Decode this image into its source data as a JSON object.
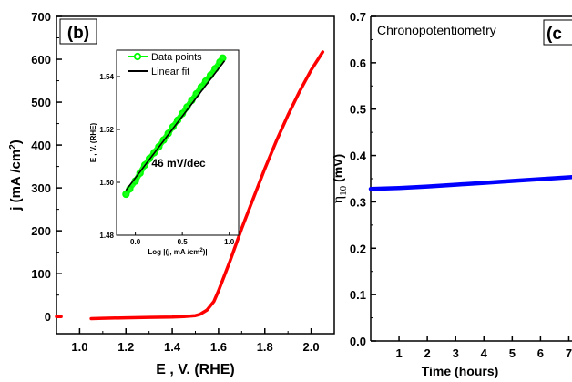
{
  "chart_data": [
    {
      "type": "line",
      "panel_label": "b",
      "xlabel": "E , V. (RHE)",
      "ylabel_main": "j (mA /cm",
      "ylabel_sup": "2",
      "ylabel_end": ")",
      "xlim": [
        0.9,
        2.1
      ],
      "ylim": [
        -40,
        700
      ],
      "xticks": [
        1.0,
        1.2,
        1.4,
        1.6,
        1.8,
        2.0
      ],
      "xtick_labels": [
        "1.0",
        "1.2",
        "1.4",
        "1.6",
        "1.8",
        "2.0"
      ],
      "yticks": [
        0,
        100,
        200,
        300,
        400,
        500,
        600,
        700
      ],
      "ytick_labels": [
        "0",
        "100",
        "200",
        "300",
        "400",
        "500",
        "600",
        "700"
      ],
      "series_color": "#ff0000",
      "series": [
        {
          "x": [
            1.05,
            1.1,
            1.2,
            1.3,
            1.4,
            1.45,
            1.5,
            1.52,
            1.55,
            1.58,
            1.6,
            1.65,
            1.7,
            1.75,
            1.8,
            1.85,
            1.9,
            1.95,
            2.0,
            2.03,
            2.05
          ],
          "y": [
            -5,
            -4,
            -3,
            -2,
            -1,
            0,
            2,
            5,
            15,
            35,
            60,
            130,
            205,
            275,
            345,
            410,
            470,
            525,
            575,
            600,
            617
          ]
        },
        {
          "x": [
            0.9,
            0.92
          ],
          "y": [
            0,
            0
          ]
        }
      ],
      "inset": {
        "xlabel_main": "Log |(j, mA /cm",
        "xlabel_sup": "2",
        "xlabel_end": ")|",
        "ylabel": "E , V. (RHE)",
        "xlim": [
          -0.2,
          1.1
        ],
        "ylim": [
          1.48,
          1.55
        ],
        "xticks": [
          0.0,
          0.5,
          1.0
        ],
        "xtick_labels": [
          "0.0",
          "0.5",
          "1.0"
        ],
        "yticks": [
          1.48,
          1.5,
          1.52,
          1.54
        ],
        "ytick_labels": [
          "1.48",
          "1.50",
          "1.52",
          "1.54"
        ],
        "legend": [
          {
            "label": "Data points",
            "color": "#00ff00"
          },
          {
            "label": "Linear fit",
            "color": "#000000"
          }
        ],
        "annotation": "46 mV/dec",
        "fit": {
          "x": [
            -0.1,
            0.95
          ],
          "y": [
            1.497,
            1.546
          ]
        },
        "points": {
          "x": [
            -0.1,
            -0.06,
            0.0,
            0.05,
            0.1,
            0.15,
            0.2,
            0.25,
            0.3,
            0.35,
            0.4,
            0.45,
            0.5,
            0.55,
            0.6,
            0.65,
            0.7,
            0.75,
            0.8,
            0.85,
            0.9,
            0.93
          ],
          "y": [
            1.4955,
            1.4975,
            1.5005,
            1.5035,
            1.5065,
            1.509,
            1.5112,
            1.5135,
            1.516,
            1.5185,
            1.521,
            1.5235,
            1.526,
            1.5285,
            1.531,
            1.5335,
            1.536,
            1.5383,
            1.5405,
            1.543,
            1.5455,
            1.547
          ]
        }
      }
    },
    {
      "type": "line",
      "panel_label": "c",
      "title_inside": "Chronopotentiometry",
      "xlabel": "Time (hours)",
      "ylabel_main": "η",
      "ylabel_sub": "10",
      "ylabel_end": " (mV)",
      "xlim": [
        0,
        7.5
      ],
      "ylim": [
        0,
        0.7
      ],
      "xticks": [
        1,
        2,
        3,
        4,
        5,
        6,
        7
      ],
      "xtick_labels": [
        "1",
        "2",
        "3",
        "4",
        "5",
        "6",
        "7"
      ],
      "yticks": [
        0.0,
        0.1,
        0.2,
        0.3,
        0.4,
        0.5,
        0.6,
        0.7
      ],
      "ytick_labels": [
        "0.0",
        "0.1",
        "0.2",
        "0.3",
        "0.4",
        "0.5",
        "0.6",
        "0.7"
      ],
      "series_color": "#0000ff",
      "series": [
        {
          "x": [
            0,
            1,
            2,
            3,
            4,
            5,
            6,
            7,
            7.5
          ],
          "y": [
            0.328,
            0.33,
            0.333,
            0.337,
            0.341,
            0.345,
            0.349,
            0.353,
            0.355
          ]
        }
      ]
    }
  ]
}
